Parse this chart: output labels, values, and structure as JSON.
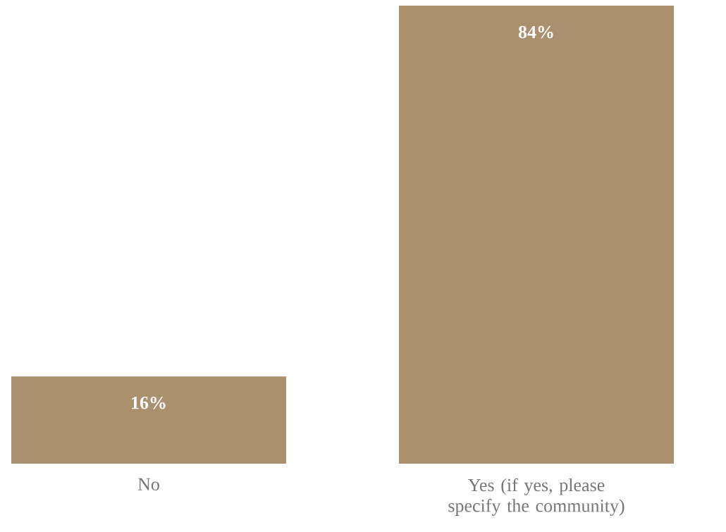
{
  "chart_data": {
    "type": "bar",
    "categories": [
      "No",
      "Yes (if yes, please specify the community)"
    ],
    "values": [
      16,
      84
    ],
    "color": "#ab9070",
    "value_labels": [
      "16%",
      "84%"
    ]
  }
}
